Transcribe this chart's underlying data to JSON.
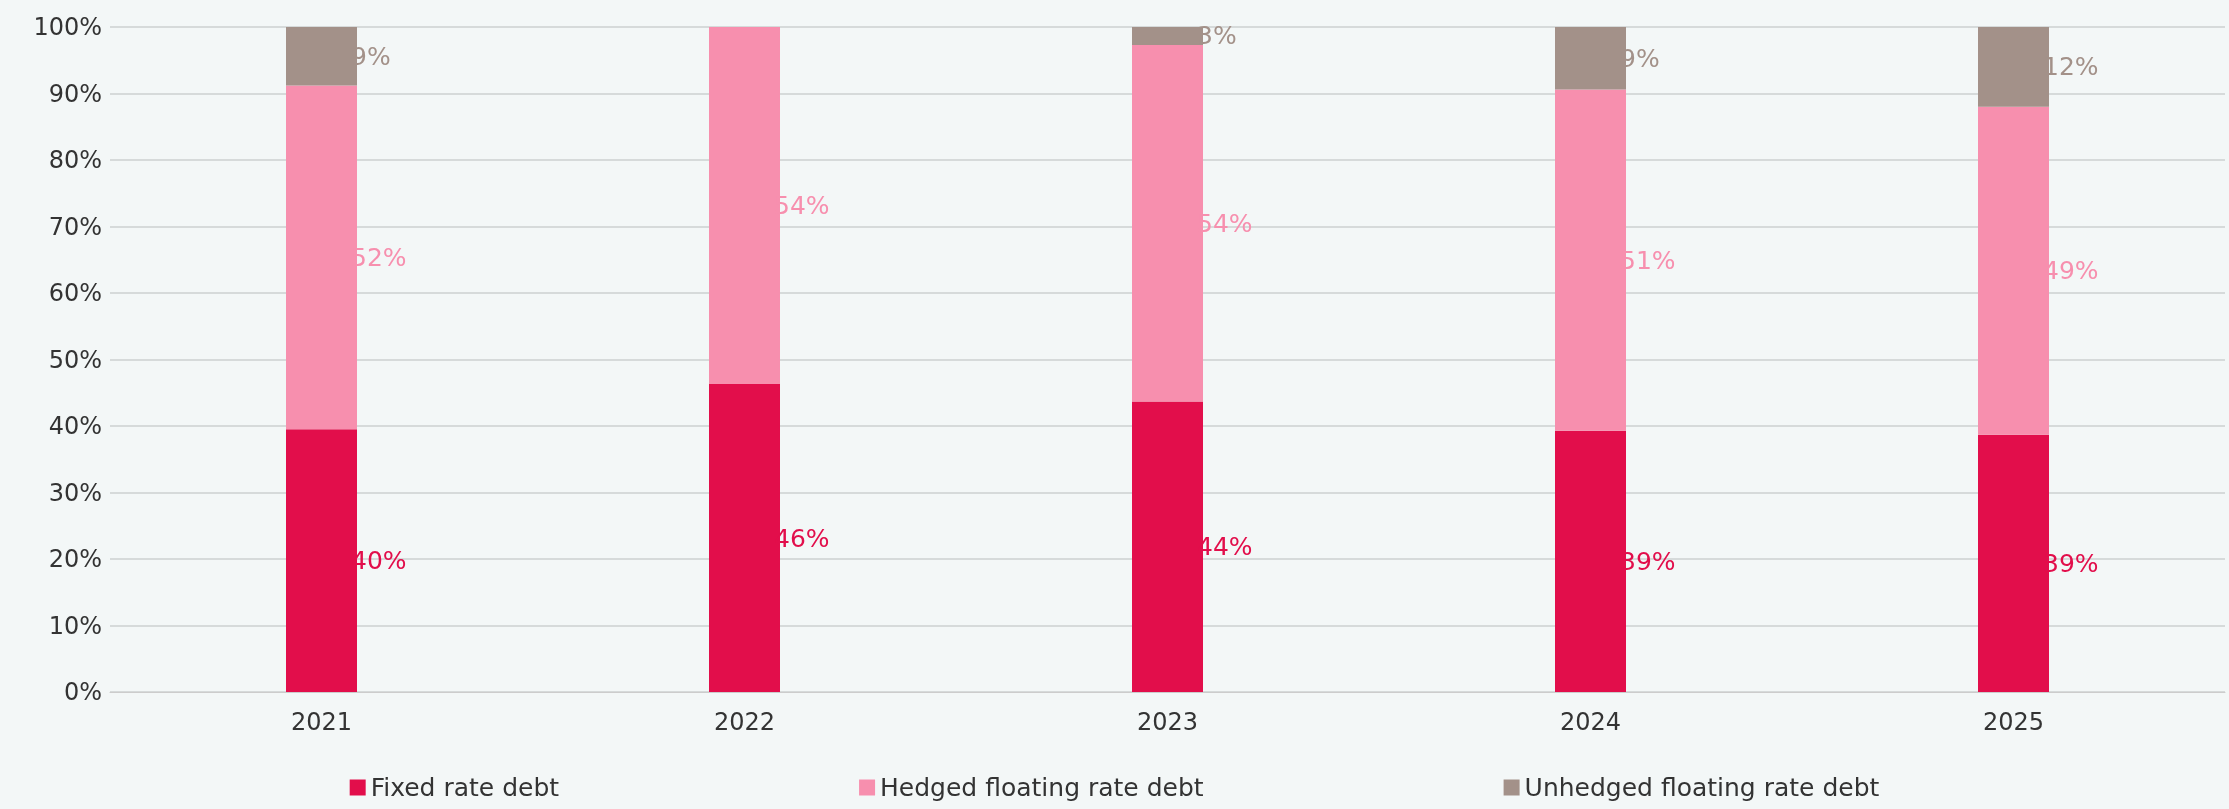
{
  "chart_data": {
    "type": "bar",
    "stacked": true,
    "categories": [
      "2021",
      "2022",
      "2023",
      "2024",
      "2025"
    ],
    "series": [
      {
        "name": "Fixed rate debt",
        "color": "#e20e4b",
        "values": [
          39.5,
          46.3,
          43.7,
          39.3,
          38.7
        ],
        "value_labels": [
          "40%",
          "46%",
          "44%",
          "39%",
          "39%"
        ]
      },
      {
        "name": "Hedged floating rate debt",
        "color": "#f78fae",
        "values": [
          51.7,
          53.7,
          53.6,
          51.3,
          49.3
        ],
        "value_labels": [
          "52%",
          "54%",
          "54%",
          "51%",
          "49%"
        ]
      },
      {
        "name": "Unhedged floating rate debt",
        "color": "#a39189",
        "values": [
          8.8,
          0,
          2.7,
          9.4,
          12
        ],
        "value_labels": [
          "9%",
          null,
          "3%",
          "9%",
          "12%"
        ]
      }
    ],
    "ylim": [
      0,
      100
    ],
    "yticks": [
      {
        "value": 0,
        "label": "0%"
      },
      {
        "value": 10,
        "label": "10%"
      },
      {
        "value": 20,
        "label": "20%"
      },
      {
        "value": 30,
        "label": "30%"
      },
      {
        "value": 40,
        "label": "40%"
      },
      {
        "value": 50,
        "label": "50%"
      },
      {
        "value": 60,
        "label": "60%"
      },
      {
        "value": 70,
        "label": "70%"
      },
      {
        "value": 80,
        "label": "80%"
      },
      {
        "value": 90,
        "label": "90%"
      },
      {
        "value": 100,
        "label": "100%"
      }
    ],
    "grid": "y",
    "legend": "bottom"
  }
}
